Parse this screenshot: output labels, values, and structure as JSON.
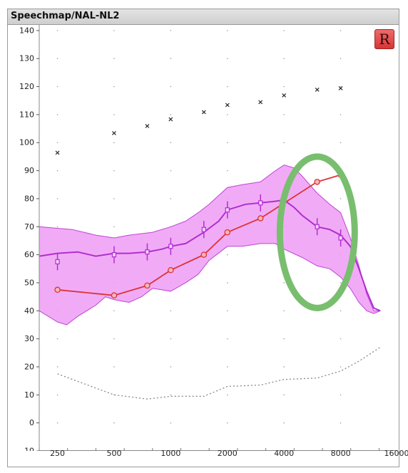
{
  "window": {
    "title": "Speechmap/NAL-NL2"
  },
  "buttons": {
    "r_label": "R"
  },
  "colors": {
    "band_fill": "#ee9cf4",
    "band_stroke": "#bf42d6",
    "target": "#b02ed0",
    "aided": "#dd3236",
    "ucl": "#222222",
    "threshold": "#888888",
    "highlight": "#79be6f",
    "r_button": "#e34646"
  },
  "chart_data": {
    "type": "line",
    "x_scale": "log",
    "xlim": [
      200,
      16000
    ],
    "ylim": [
      -10,
      142
    ],
    "x_ticks": [
      250,
      500,
      1000,
      2000,
      4000,
      8000,
      16000
    ],
    "y_ticks": [
      -10,
      0,
      10,
      20,
      30,
      40,
      50,
      60,
      70,
      80,
      90,
      100,
      110,
      120,
      130,
      140
    ],
    "grid": "dotted",
    "speech_band": {
      "upper": [
        [
          200,
          70
        ],
        [
          300,
          69
        ],
        [
          400,
          67
        ],
        [
          500,
          66
        ],
        [
          600,
          67
        ],
        [
          800,
          68
        ],
        [
          1000,
          70
        ],
        [
          1200,
          72
        ],
        [
          1400,
          75
        ],
        [
          1600,
          78
        ],
        [
          2000,
          84
        ],
        [
          2400,
          85
        ],
        [
          3000,
          86
        ],
        [
          3600,
          90
        ],
        [
          4000,
          92
        ],
        [
          4500,
          91
        ],
        [
          5000,
          88
        ],
        [
          6000,
          82
        ],
        [
          7000,
          78
        ],
        [
          8000,
          75
        ],
        [
          9000,
          66
        ],
        [
          10000,
          56
        ],
        [
          11000,
          46
        ],
        [
          12000,
          40
        ],
        [
          13000,
          40
        ]
      ],
      "lower": [
        [
          200,
          40
        ],
        [
          250,
          36
        ],
        [
          280,
          35
        ],
        [
          320,
          38
        ],
        [
          400,
          42
        ],
        [
          450,
          45
        ],
        [
          500,
          44
        ],
        [
          600,
          43
        ],
        [
          700,
          45
        ],
        [
          800,
          48
        ],
        [
          1000,
          47
        ],
        [
          1200,
          50
        ],
        [
          1400,
          53
        ],
        [
          1600,
          58
        ],
        [
          2000,
          63
        ],
        [
          2400,
          63
        ],
        [
          3000,
          64
        ],
        [
          3600,
          64
        ],
        [
          4000,
          62
        ],
        [
          5000,
          59
        ],
        [
          6000,
          56
        ],
        [
          7000,
          55
        ],
        [
          8000,
          52
        ],
        [
          9000,
          48
        ],
        [
          10000,
          43
        ],
        [
          11000,
          40
        ],
        [
          12000,
          39
        ],
        [
          13000,
          40
        ]
      ]
    },
    "series": [
      {
        "name": "",
        "role": "target",
        "points": [
          [
            200,
            59.5
          ],
          [
            250,
            60.5
          ],
          [
            320,
            61
          ],
          [
            400,
            59.5
          ],
          [
            500,
            60.5
          ],
          [
            600,
            60.5
          ],
          [
            750,
            61
          ],
          [
            900,
            62
          ],
          [
            1000,
            63
          ],
          [
            1200,
            64
          ],
          [
            1500,
            68
          ],
          [
            1800,
            72
          ],
          [
            2000,
            76
          ],
          [
            2500,
            78
          ],
          [
            3000,
            78.5
          ],
          [
            3500,
            79
          ],
          [
            4000,
            79.5
          ],
          [
            4500,
            77
          ],
          [
            5000,
            74
          ],
          [
            6000,
            70
          ],
          [
            7000,
            69
          ],
          [
            8000,
            67
          ],
          [
            9000,
            63
          ],
          [
            10000,
            55
          ],
          [
            11000,
            47
          ],
          [
            12000,
            41
          ],
          [
            13000,
            40
          ]
        ],
        "markers": [
          250,
          500,
          750,
          1000,
          1500,
          2000,
          3000,
          6000,
          8000
        ],
        "marker_values": [
          57.5,
          60,
          61,
          63,
          69,
          76,
          78.5,
          70,
          66
        ]
      },
      {
        "name": "",
        "role": "aided",
        "x": [
          250,
          500,
          750,
          1000,
          1500,
          2000,
          3000,
          6000,
          8000
        ],
        "y": [
          47.5,
          45.5,
          49,
          54.5,
          60,
          68,
          73,
          86,
          88.5
        ]
      },
      {
        "name": "",
        "role": "ucl",
        "x": [
          250,
          500,
          750,
          1000,
          1500,
          2000,
          3000,
          4000,
          6000,
          8000
        ],
        "y": [
          96.5,
          103.5,
          106,
          108.5,
          111,
          113.5,
          114.5,
          117,
          119,
          119.5
        ]
      },
      {
        "name": "",
        "role": "threshold",
        "points": [
          [
            250,
            17.5
          ],
          [
            500,
            10
          ],
          [
            750,
            8.5
          ],
          [
            1000,
            9.5
          ],
          [
            1500,
            9.5
          ],
          [
            2000,
            13
          ],
          [
            3000,
            13.5
          ],
          [
            4000,
            15.5
          ],
          [
            6000,
            16
          ],
          [
            8000,
            18.5
          ],
          [
            10000,
            22
          ],
          [
            13000,
            27
          ]
        ]
      }
    ],
    "annotations": [
      {
        "type": "ellipse",
        "center_x_hz": 6000,
        "center_y": 64.5,
        "span_x_hz": [
          3800,
          9500
        ],
        "span_y": [
          41,
          95
        ],
        "color": "green"
      }
    ]
  }
}
